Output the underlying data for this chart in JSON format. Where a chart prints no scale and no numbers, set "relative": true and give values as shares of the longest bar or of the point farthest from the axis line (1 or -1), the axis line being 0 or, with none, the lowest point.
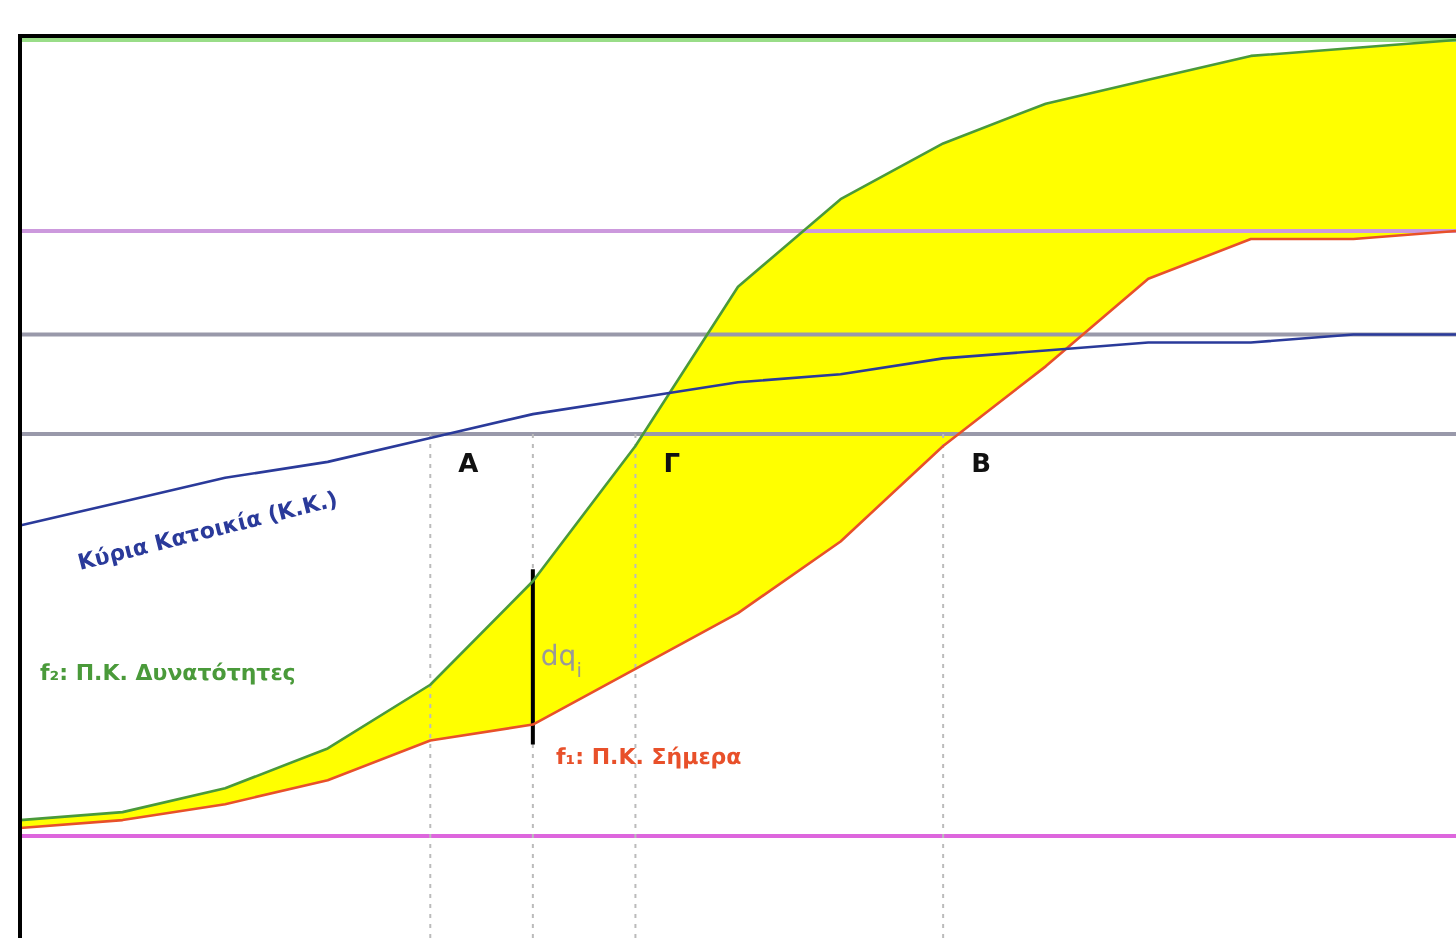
{
  "chart_data": {
    "type": "line",
    "relative": true,
    "categories": [
      null,
      null,
      null,
      null,
      null,
      null,
      null,
      null,
      null,
      null,
      null,
      null,
      null,
      null,
      null
    ],
    "series": [
      {
        "name": "f₂: Π.Κ. Δυνατότητες",
        "color": "#4a9a3a",
        "values": [
          0.02,
          0.03,
          0.06,
          0.11,
          0.19,
          0.32,
          0.49,
          0.69,
          0.8,
          0.87,
          0.92,
          0.95,
          0.98,
          0.99,
          1.0
        ],
        "lower": [
          0.01,
          0.02,
          0.04,
          0.07,
          0.12,
          0.14,
          0.21,
          0.28,
          0.37,
          0.49,
          0.59,
          0.7,
          0.75,
          0.75,
          0.76
        ],
        "upper": [
          0.02,
          0.03,
          0.06,
          0.11,
          0.19,
          0.32,
          0.49,
          0.69,
          0.8,
          0.87,
          0.92,
          0.95,
          0.98,
          0.99,
          1.0
        ]
      },
      {
        "name": "f₁: Π.Κ. Σήμερα",
        "color": "#e8502a",
        "values": [
          0.01,
          0.02,
          0.04,
          0.07,
          0.12,
          0.14,
          0.21,
          0.28,
          0.37,
          0.49,
          0.59,
          0.7,
          0.75,
          0.75,
          0.76
        ]
      },
      {
        "name": "Κύρια Κατοικία (Κ.Κ.)",
        "color": "#2a3a9a",
        "values": [
          0.39,
          0.42,
          0.45,
          0.47,
          0.5,
          0.53,
          0.55,
          0.57,
          0.58,
          0.6,
          0.61,
          0.62,
          0.62,
          0.63,
          0.63
        ]
      }
    ],
    "ref_lines": [
      {
        "axis": "y",
        "value": 1.0,
        "color": "#99dd88"
      },
      {
        "axis": "y",
        "value": 0.76,
        "color": "#cc99dd"
      },
      {
        "axis": "y",
        "value": 0.63,
        "color": "#9999aa"
      },
      {
        "axis": "y",
        "value": 0.505,
        "color": "#9999aa"
      },
      {
        "axis": "y",
        "value": 0,
        "color": "#dd66dd"
      }
    ],
    "annotations": [
      "A",
      "dq$_{i}$",
      "Γ",
      "B"
    ]
  }
}
